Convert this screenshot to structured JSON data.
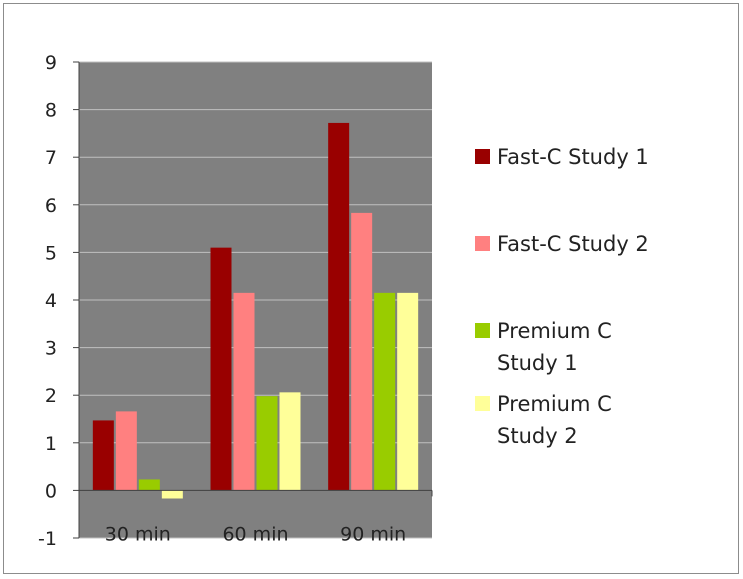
{
  "chart_data": {
    "type": "bar",
    "categories": [
      "30 min",
      "60 min",
      "90 min"
    ],
    "series": [
      {
        "name": "Fast-C Study 1",
        "values": [
          1.47,
          5.1,
          7.72
        ],
        "color": "#990000"
      },
      {
        "name": "Fast-C Study 2",
        "values": [
          1.66,
          4.15,
          5.83
        ],
        "color": "#ff8080"
      },
      {
        "name": "Premium C Study 1",
        "values": [
          0.23,
          1.98,
          4.15
        ],
        "color": "#99cc00"
      },
      {
        "name": "Premium C Study 2",
        "values": [
          -0.17,
          2.06,
          4.15
        ],
        "color": "#ffff99"
      }
    ],
    "legend_lines": [
      [
        "Fast-C Study 1"
      ],
      [
        "Fast-C Study 2"
      ],
      [
        "Premium C",
        "Study 1"
      ],
      [
        "Premium C",
        "Study 2"
      ]
    ],
    "yticks": [
      9,
      8,
      7,
      6,
      5,
      4,
      3,
      2,
      1,
      0,
      -1
    ],
    "ylim": [
      -1,
      9
    ],
    "grid": true,
    "plot_background": "#808080",
    "gridline_color": "#c0c0c0",
    "legend_position": "right",
    "title": "",
    "xlabel": "",
    "ylabel": ""
  }
}
